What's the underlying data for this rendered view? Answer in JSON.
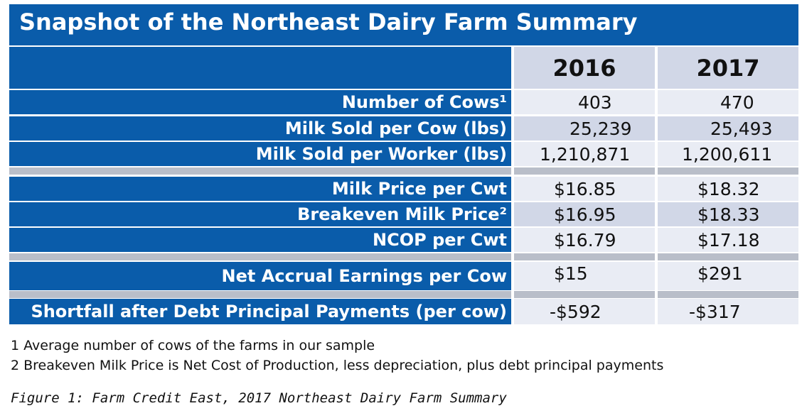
{
  "title": "Snapshot of the Northeast Dairy Farm Summary",
  "columns": [
    "2016",
    "2017"
  ],
  "rows": [
    {
      "label": "Number of Cows¹",
      "v2016": "403",
      "v2017": "470"
    },
    {
      "label": "Milk Sold per Cow (lbs)",
      "v2016": "25,239",
      "v2017": "25,493"
    },
    {
      "label": "Milk Sold per Worker (lbs)",
      "v2016": "1,210,871",
      "v2017": "1,200,611"
    },
    {
      "label": "Milk Price per Cwt",
      "v2016": "$16.85",
      "v2017": "$18.32"
    },
    {
      "label": "Breakeven Milk Price²",
      "v2016": "$16.95",
      "v2017": "$18.33"
    },
    {
      "label": "NCOP per Cwt",
      "v2016": "$16.79",
      "v2017": "$17.18"
    },
    {
      "label": "Net Accrual Earnings per Cow",
      "v2016": "$15",
      "v2017": "$291"
    },
    {
      "label": "Shortfall after Debt Principal Payments (per cow)",
      "v2016": "-$592",
      "v2017": "-$317"
    }
  ],
  "footnotes": [
    "1 Average number of cows of the farms in our sample",
    "2 Breakeven Milk Price is Net Cost of Production, less depreciation, plus debt principal payments"
  ],
  "caption": "Figure 1: Farm Credit East, 2017 Northeast Dairy Farm Summary",
  "colors": {
    "header_blue": "#0a5caa",
    "cell_light": "#e9ecf4",
    "cell_mid": "#d1d7e7",
    "separator": "#b9bec9"
  }
}
